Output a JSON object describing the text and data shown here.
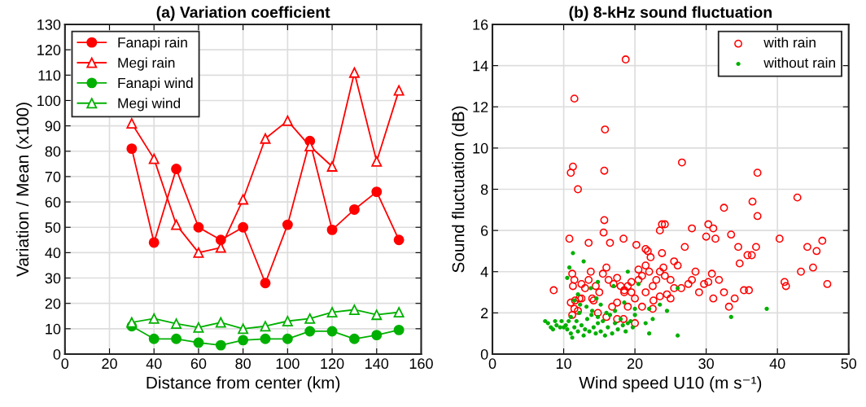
{
  "chart_data": [
    {
      "type": "line",
      "title": "(a) Variation coefficient",
      "xlabel": "Distance from center (km)",
      "ylabel": "Variation / Mean (x100)",
      "xlim": [
        0,
        160
      ],
      "xticks": [
        0,
        20,
        40,
        60,
        80,
        100,
        120,
        140,
        160
      ],
      "ylim": [
        0,
        130
      ],
      "yticks": [
        0,
        10,
        20,
        30,
        40,
        50,
        60,
        70,
        80,
        90,
        100,
        110,
        120,
        130
      ],
      "grid": true,
      "legend": "top left",
      "line_style": "solid",
      "x": [
        30,
        40,
        50,
        60,
        70,
        80,
        90,
        100,
        110,
        120,
        130,
        140,
        150
      ],
      "series": [
        {
          "name": "Fanapi rain",
          "color": "#ff0000",
          "marker": "circle",
          "values": [
            81,
            44,
            73,
            50,
            45,
            50,
            28,
            51,
            84,
            49,
            57,
            64,
            45
          ]
        },
        {
          "name": "Megi rain",
          "color": "#ff0000",
          "marker": "triangle",
          "values": [
            91,
            77,
            51,
            40,
            42,
            61,
            85,
            92,
            82,
            74,
            111,
            76,
            104
          ]
        },
        {
          "name": "Fanapi wind",
          "color": "#00b000",
          "marker": "circle",
          "values": [
            11,
            6,
            6,
            4.5,
            3.5,
            5.5,
            6,
            6,
            9,
            9,
            6,
            7.5,
            9.5
          ]
        },
        {
          "name": "Megi wind",
          "color": "#00b000",
          "marker": "triangle",
          "values": [
            12.5,
            14,
            12,
            10.5,
            12.5,
            10,
            11,
            13,
            14,
            16.5,
            17.5,
            15.5,
            16.5
          ]
        }
      ]
    },
    {
      "type": "scatter",
      "title": "(b) 8-kHz sound fluctuation",
      "xlabel": "Wind speed U10 (m s⁻¹)",
      "ylabel": "Sound fluctuation (dB)",
      "xlim": [
        0,
        50
      ],
      "xticks": [
        0,
        10,
        20,
        30,
        40,
        50
      ],
      "ylim": [
        0,
        16
      ],
      "yticks": [
        0,
        2,
        4,
        6,
        8,
        10,
        12,
        14,
        16
      ],
      "grid": true,
      "legend": "top right",
      "marker": "circle",
      "series": [
        {
          "name": "with rain",
          "color": "#ff0000",
          "x": [
            18.7,
            11.5,
            15.8,
            11,
            11.3,
            12,
            15.7,
            26.6,
            37.2,
            42.8,
            36.5,
            32.5,
            37.2,
            28,
            30.3,
            31,
            23.8,
            24.2,
            23.5,
            15.7,
            15.6,
            10.8,
            13.5,
            16.5,
            18.4,
            21.5,
            20.2,
            27,
            30,
            31.3,
            33.5,
            34.5,
            34.7,
            35.8,
            36.4,
            37,
            40.3,
            41,
            41.2,
            44.2,
            45.5,
            45,
            46.3,
            47,
            43.3,
            36,
            35.3,
            33.2,
            34,
            32.5,
            31.8,
            30.8,
            29.7,
            28.5,
            28,
            27.5,
            25.5,
            25,
            24.5,
            23.5,
            22.6,
            23.5,
            23,
            24,
            24.2,
            22,
            21.5,
            21,
            20.5,
            19.5,
            19,
            18.5,
            18,
            17.5,
            17,
            16.3,
            16,
            15.5,
            15,
            14.5,
            14,
            13.8,
            13.5,
            13,
            12.5,
            12.5,
            11.5,
            11.3,
            11.2,
            11.5,
            11,
            11.2,
            11.6,
            8.6,
            12,
            14.8,
            16,
            17.5,
            18.4,
            19,
            19.5,
            20,
            21,
            21.5,
            22.5,
            20,
            18.5,
            22.5,
            25,
            26,
            26.5,
            29,
            30.3,
            31,
            12.2,
            14.2,
            16.8,
            17.5,
            20.5,
            23.8,
            22.2,
            21.8,
            25.5
          ],
          "values": [
            14.3,
            12.4,
            10.9,
            8.8,
            9.1,
            8.0,
            8.9,
            9.3,
            8.8,
            7.6,
            7.4,
            7.1,
            6.7,
            6.1,
            6.3,
            6.1,
            6.3,
            6.3,
            6.0,
            6.5,
            5.9,
            5.6,
            5.4,
            5.4,
            5.6,
            5.1,
            5.3,
            5.2,
            5.7,
            5.6,
            5.8,
            5.2,
            4.4,
            4.8,
            4.8,
            5.2,
            5.6,
            3.5,
            3.3,
            5.2,
            5.0,
            4.2,
            5.5,
            3.4,
            4.0,
            3.1,
            3.1,
            2.3,
            2.7,
            3.0,
            3.6,
            3.9,
            3.4,
            4.0,
            3.6,
            3.4,
            3.2,
            2.7,
            2.9,
            2.8,
            2.6,
            4.0,
            3.6,
            4.2,
            3.8,
            4.0,
            4.3,
            3.8,
            3.6,
            3.5,
            3.3,
            3.0,
            3.3,
            3.7,
            3.4,
            3.6,
            4.2,
            3.9,
            3.0,
            3.3,
            2.7,
            4.0,
            3.6,
            3.2,
            2.7,
            3.4,
            3.6,
            3.3,
            3.9,
            2.2,
            2.5,
            1.9,
            2.6,
            3.1,
            2.1,
            2.0,
            1.8,
            1.7,
            1.7,
            2.3,
            3.0,
            2.7,
            2.3,
            3.0,
            2.2,
            1.5,
            3.1,
            3.3,
            3.6,
            4.3,
            3.2,
            3.0,
            3.5,
            2.7,
            2.7,
            2.6,
            2.3,
            2.5,
            4.1,
            4.9,
            4.7,
            5.0,
            4.5
          ]
        },
        {
          "name": "without rain",
          "color": "#00b000",
          "x": [
            11.3,
            12.8,
            10.8,
            10.5,
            14.8,
            13.8,
            17,
            19,
            20.5,
            15.2,
            14.8,
            18.5,
            20,
            22,
            23.5,
            26,
            24.5,
            22.5,
            21.5,
            22,
            26,
            33.5,
            38.5,
            7.4,
            7.8,
            8.2,
            8.5,
            9,
            9.5,
            10,
            10.5,
            11,
            11.2,
            11.5,
            11.8,
            12,
            12.2,
            12.5,
            12.8,
            13,
            13.3,
            13.6,
            13.9,
            14.2,
            14.5,
            14.8,
            15.2,
            15.5,
            15.8,
            16.2,
            16.5,
            16.8,
            17.2,
            17.6,
            18,
            18.3,
            18.7,
            19,
            19.4,
            19.7,
            20,
            11.5,
            12,
            11,
            10.7,
            12.3,
            13.2,
            14,
            14.6,
            16,
            17.2,
            9.7,
            10.3,
            8.8
          ],
          "values": [
            4.9,
            4.5,
            4.2,
            3.7,
            3.5,
            3.2,
            3.3,
            4.0,
            3.4,
            2.4,
            1.8,
            2.5,
            1.9,
            2.2,
            2.4,
            3.2,
            2.1,
            1.7,
            1.5,
            1.0,
            0.9,
            1.8,
            2.2,
            1.6,
            1.5,
            1.3,
            1.2,
            1.4,
            1.3,
            1.3,
            1.2,
            1.0,
            0.8,
            1.3,
            1.6,
            1.1,
            2.0,
            1.4,
            0.9,
            1.2,
            1.7,
            1.1,
            1.9,
            1.3,
            1.0,
            1.5,
            1.1,
            1.6,
            0.9,
            1.3,
            1.9,
            1.0,
            1.5,
            1.2,
            1.7,
            1.4,
            1.1,
            1.5,
            1.6,
            1.3,
            2.2,
            2.6,
            2.9,
            1.8,
            1.6,
            2.4,
            2.3,
            2.1,
            2.7,
            2.0,
            2.1,
            1.6,
            1.4,
            1.6
          ]
        }
      ]
    }
  ]
}
